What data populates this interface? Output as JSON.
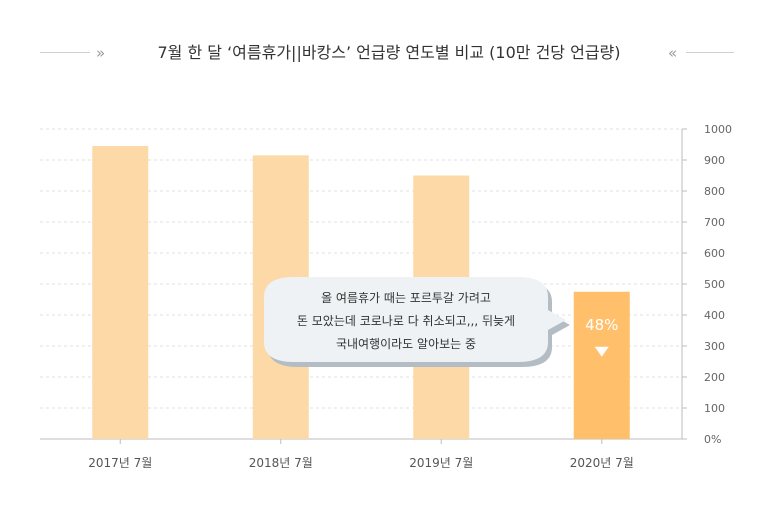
{
  "chart_data": {
    "type": "bar",
    "title": "7월 한 달 ‘여름휴가||바캉스’ 언급량 연도별 비교 (10만 건당 언급량)",
    "categories": [
      "2017년 7월",
      "2018년 7월",
      "2019년 7월",
      "2020년 7월"
    ],
    "values": [
      945,
      915,
      850,
      475
    ],
    "ylim": [
      0,
      1000
    ],
    "y_ticks": [
      "0%",
      "100",
      "200",
      "300",
      "400",
      "500",
      "600",
      "700",
      "800",
      "900",
      "1000"
    ],
    "y_axis_side": "right",
    "grid": true,
    "colors": {
      "normal": "#fdd9a8",
      "highlight": "#ffbf6b"
    },
    "highlight_index": 3,
    "annotation": {
      "lines": [
        "올 여름휴가 때는 포르투갈 가려고",
        "돈 모았는데 코로나로 다 취소되고,,, 뒤늦게",
        "국내여행이라도 알아보는 중"
      ],
      "value_label": "48%",
      "marker": "down-triangle"
    }
  }
}
